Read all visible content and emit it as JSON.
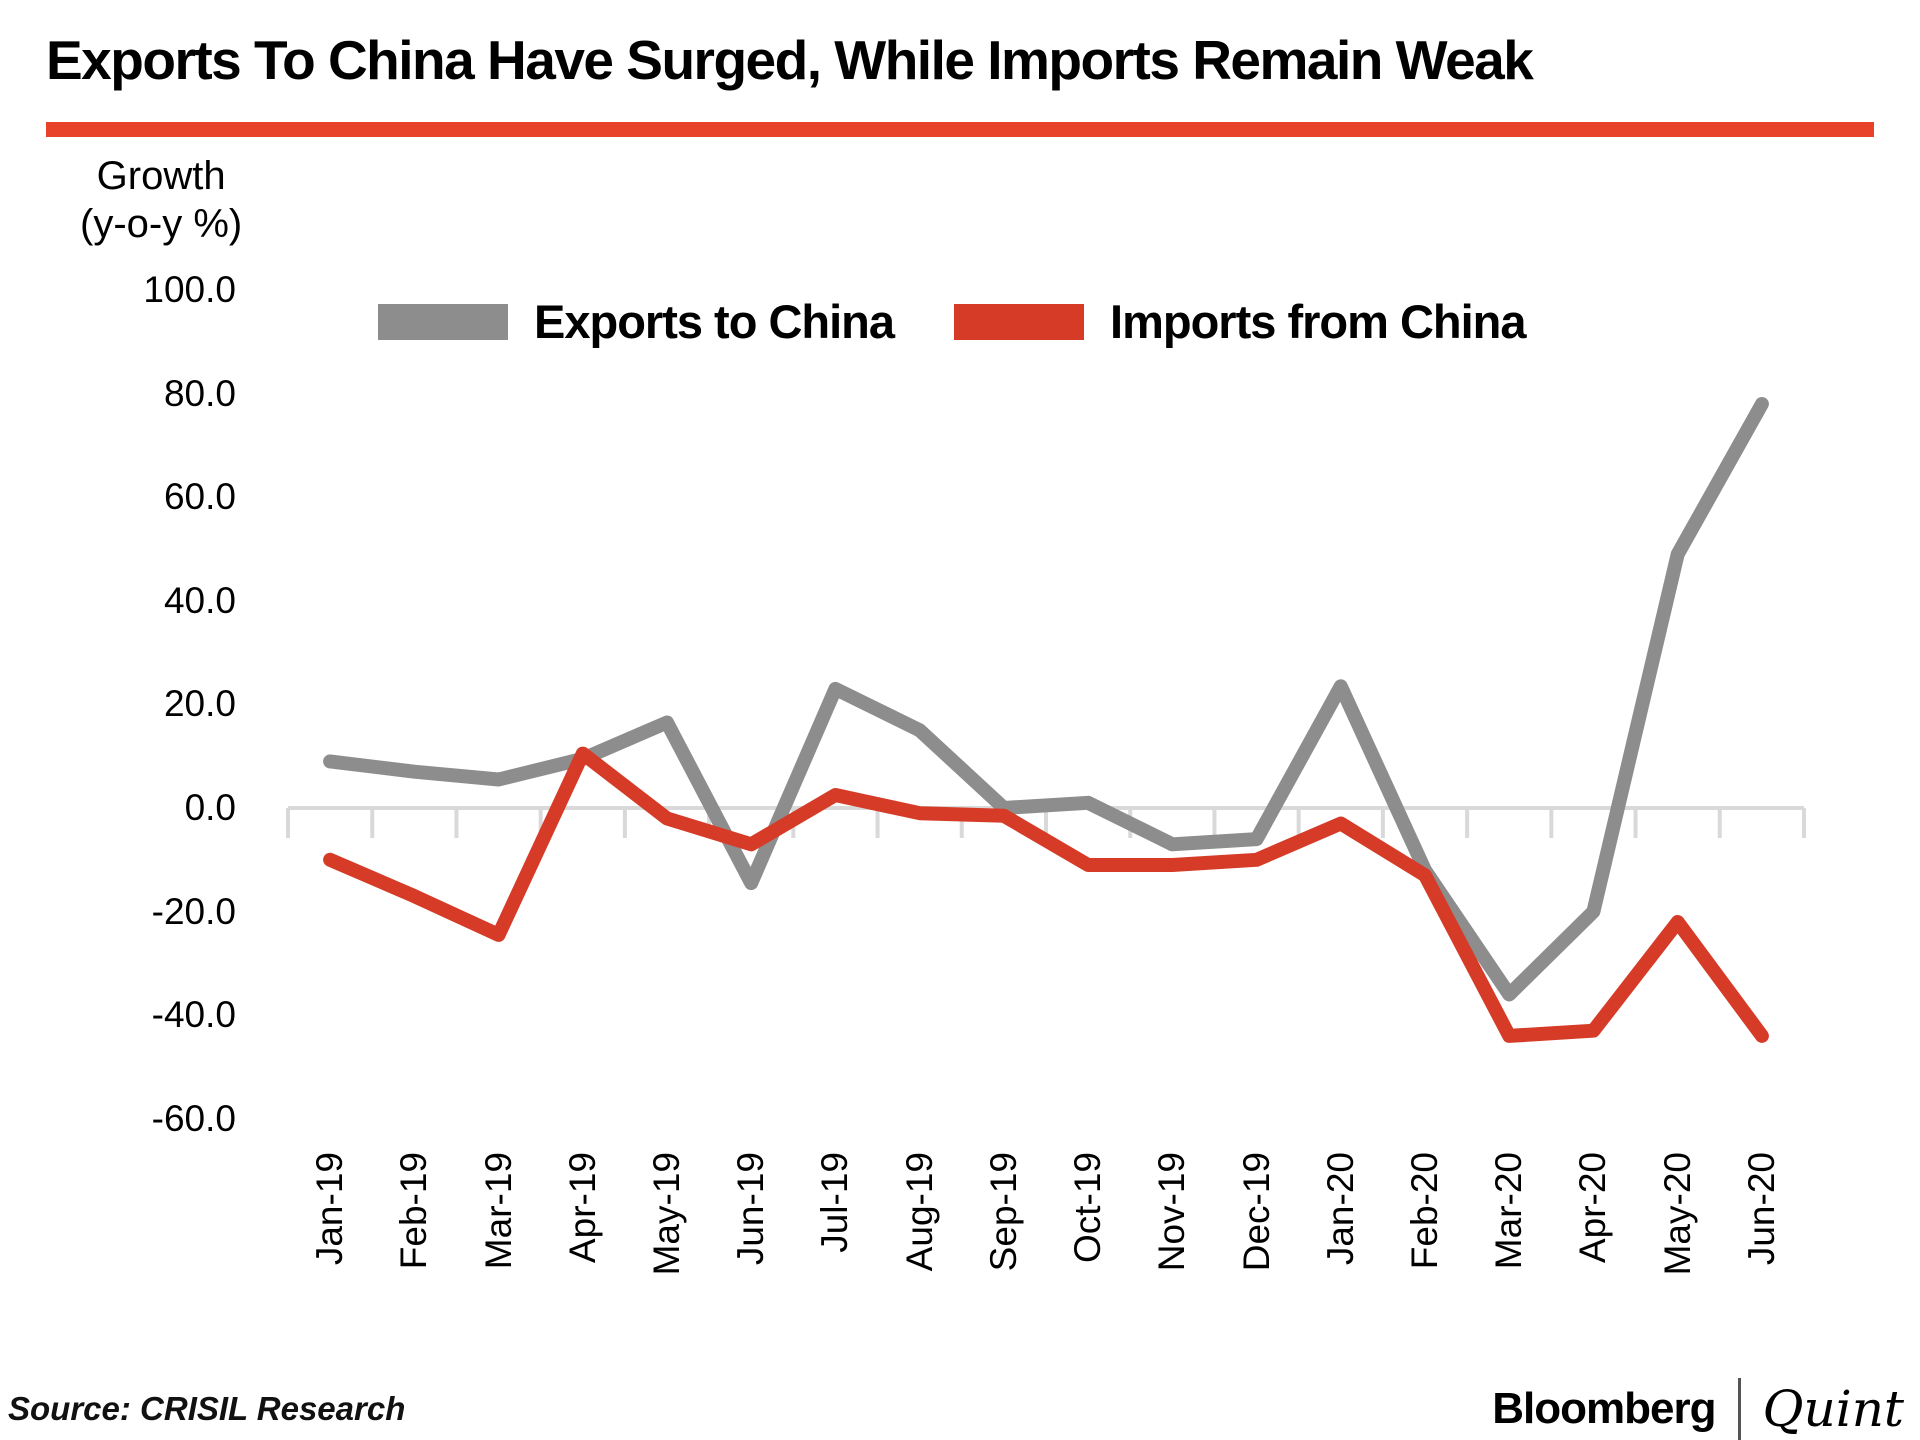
{
  "header": {
    "title": "Exports To China Have Surged, While Imports Remain Weak",
    "accent_color": "#e8432a"
  },
  "y_axis": {
    "label_line1": "Growth",
    "label_line2": "(y-o-y %)"
  },
  "legend": {
    "items": [
      {
        "label": "Exports to China",
        "color": "#8d8d8d"
      },
      {
        "label": "Imports from China",
        "color": "#d63b28"
      }
    ]
  },
  "footer": {
    "source": "Source: CRISIL Research",
    "brand_left": "Bloomberg",
    "brand_right": "Quint"
  },
  "chart_data": {
    "type": "line",
    "title": "Exports To China Have Surged, While Imports Remain Weak",
    "ylabel": "Growth (y-o-y %)",
    "categories": [
      "Jan-19",
      "Feb-19",
      "Mar-19",
      "Apr-19",
      "May-19",
      "Jun-19",
      "Jul-19",
      "Aug-19",
      "Sep-19",
      "Oct-19",
      "Nov-19",
      "Dec-19",
      "Jan-20",
      "Feb-20",
      "Mar-20",
      "Apr-20",
      "May-20",
      "Jun-20"
    ],
    "series": [
      {
        "name": "Exports to China",
        "color": "#8d8d8d",
        "values": [
          9,
          7,
          5.5,
          9.5,
          16.5,
          -14.5,
          23,
          15,
          0,
          1,
          -7,
          -6,
          23.5,
          -12,
          -36,
          -20,
          49,
          78
        ]
      },
      {
        "name": "Imports from China",
        "color": "#d63b28",
        "values": [
          -10,
          -17,
          -24.5,
          10.5,
          -2,
          -7,
          2.5,
          -1,
          -1.5,
          -11,
          -11,
          -10,
          -3,
          -13,
          -44,
          -43,
          -22,
          -44
        ]
      }
    ],
    "yticks": [
      100,
      80,
      60,
      40,
      20,
      0,
      -20,
      -40,
      -60
    ],
    "ytick_format": "one-decimal",
    "ylim": [
      -60,
      100
    ],
    "grid": "zero-axis-only",
    "axis_color": "#d9d9d9",
    "legend_position": "top-center"
  }
}
